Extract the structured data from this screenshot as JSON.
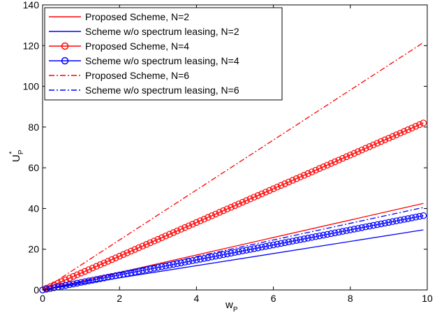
{
  "chart_data": {
    "type": "line",
    "xlabel": "w",
    "xlabel_sub": "P",
    "ylabel": "U",
    "ylabel_sub": "P",
    "ylabel_sup": "*",
    "xlim": [
      0,
      10
    ],
    "ylim": [
      0,
      140
    ],
    "xticks": [
      "0",
      "2",
      "4",
      "6",
      "8",
      "10"
    ],
    "yticks": [
      "0",
      "20",
      "40",
      "60",
      "80",
      "100",
      "120",
      "140"
    ],
    "grid": false,
    "legend_position": "top-left",
    "series": [
      {
        "name": "Proposed Scheme, N=2",
        "color": "#ff0000",
        "style": "solid",
        "marker": "none",
        "x": [
          0,
          9.9
        ],
        "y": [
          0,
          42.5
        ]
      },
      {
        "name": "Scheme w/o spectrum leasing, N=2",
        "color": "#0000ff",
        "style": "solid",
        "marker": "none",
        "x": [
          0,
          9.9
        ],
        "y": [
          0,
          29.5
        ]
      },
      {
        "name": "Proposed Scheme, N=4",
        "color": "#ff0000",
        "style": "solid",
        "marker": "circle",
        "x": [
          0,
          9.9
        ],
        "y": [
          0,
          82
        ]
      },
      {
        "name": "Scheme w/o spectrum leasing, N=4",
        "color": "#0000ff",
        "style": "solid",
        "marker": "circle",
        "x": [
          0,
          9.9
        ],
        "y": [
          0,
          36.5
        ]
      },
      {
        "name": "Proposed Scheme, N=6",
        "color": "#ff0000",
        "style": "dashdot",
        "marker": "none",
        "x": [
          0,
          9.9
        ],
        "y": [
          0,
          121.5
        ]
      },
      {
        "name": "Scheme w/o spectrum leasing, N=6",
        "color": "#0000ff",
        "style": "dashdot",
        "marker": "none",
        "x": [
          0,
          9.9
        ],
        "y": [
          0,
          40.5
        ]
      }
    ]
  }
}
